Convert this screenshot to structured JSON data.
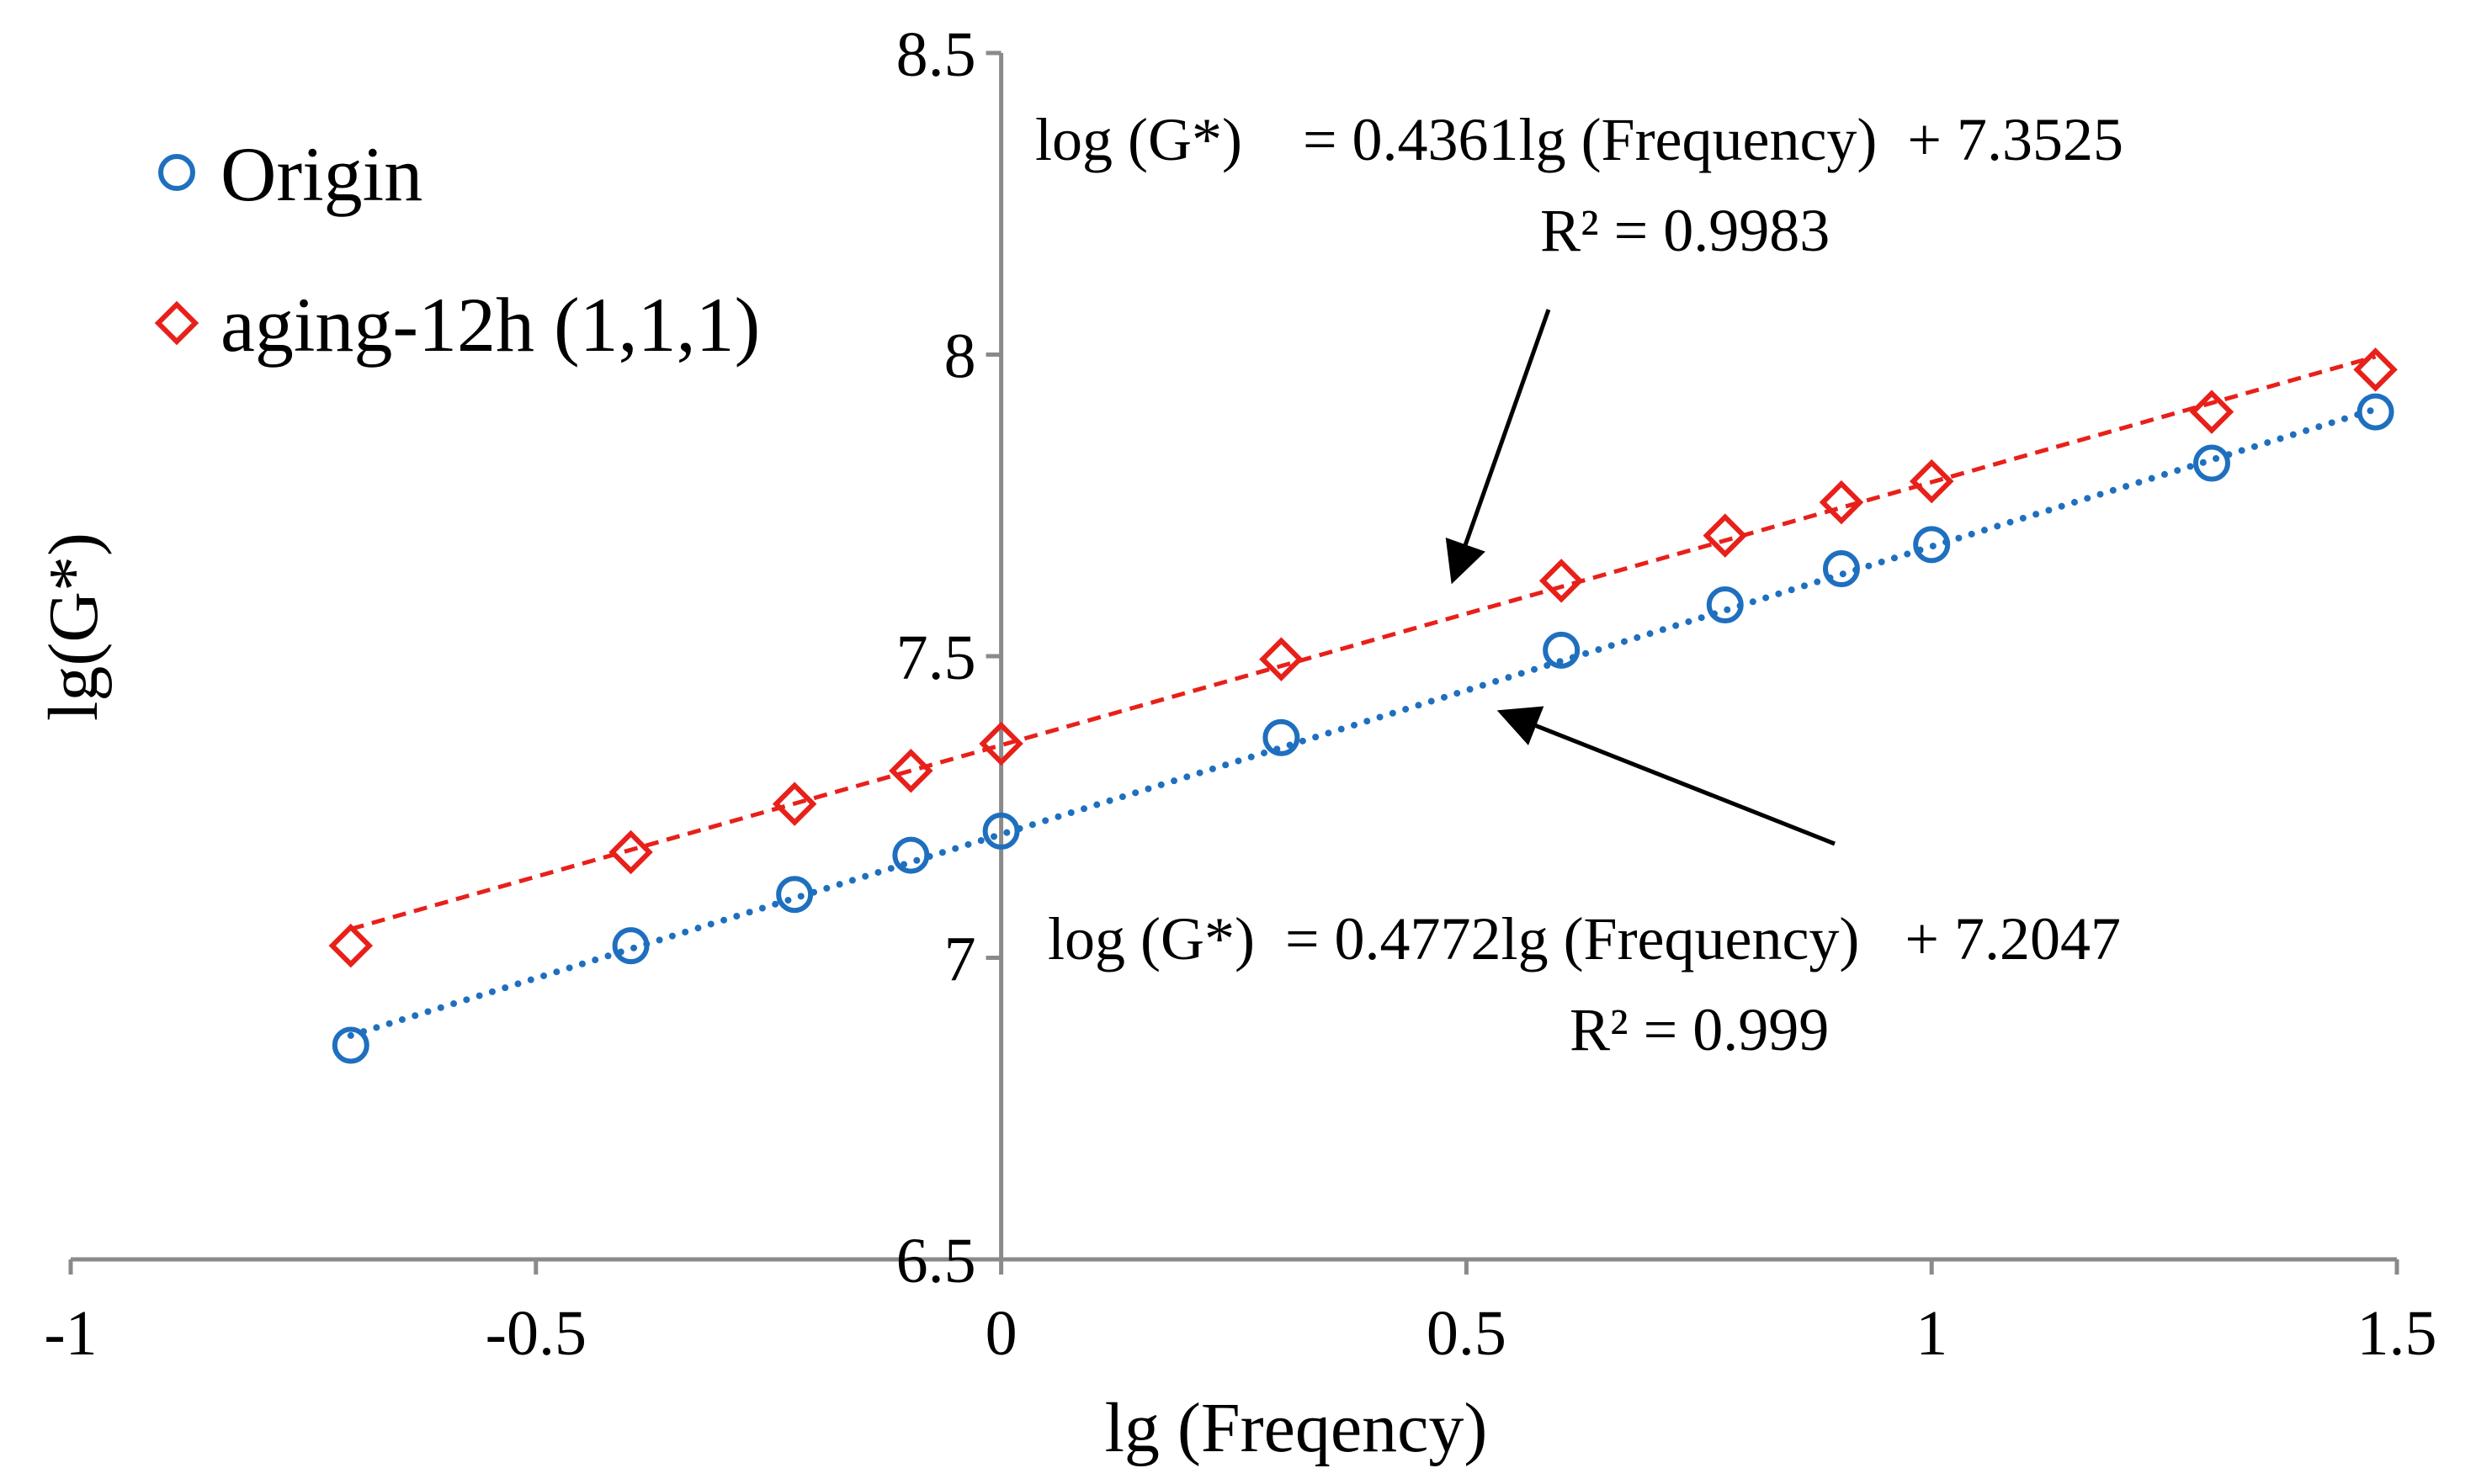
{
  "chart_data": {
    "type": "scatter",
    "xlabel": "lg (Freqency)",
    "ylabel": "lg(G*)",
    "xlim": [
      -1,
      1.5
    ],
    "ylim": [
      6.5,
      8.5
    ],
    "x_ticks": [
      "-1",
      "-0.5",
      "0",
      "0.5",
      "1",
      "1.5"
    ],
    "y_ticks": [
      "6.5",
      "7",
      "7.5",
      "8",
      "8.5"
    ],
    "grid": false,
    "legend_position": "top-left",
    "series": [
      {
        "name": "Origin",
        "marker": "circle",
        "color": "#1f6fbf",
        "trendline": "dotted",
        "x": [
          -0.699,
          -0.398,
          -0.222,
          -0.097,
          0.0,
          0.301,
          0.602,
          0.778,
          0.903,
          1.0,
          1.301,
          1.477
        ],
        "y": [
          6.855,
          7.02,
          7.105,
          7.17,
          7.21,
          7.365,
          7.51,
          7.585,
          7.645,
          7.685,
          7.82,
          7.905
        ],
        "fit": {
          "slope": 0.4772,
          "intercept": 7.2047,
          "equation": "log (G*)  = 0.4772lg (Frequency)   + 7.2047",
          "r2": "R² = 0.999"
        }
      },
      {
        "name": "aging-12h (1,1,1)",
        "marker": "diamond",
        "color": "#e8201a",
        "trendline": "dashed",
        "x": [
          -0.699,
          -0.398,
          -0.222,
          -0.097,
          0.0,
          0.301,
          0.602,
          0.778,
          0.903,
          1.0,
          1.301,
          1.477
        ],
        "y": [
          7.02,
          7.175,
          7.255,
          7.31,
          7.355,
          7.495,
          7.625,
          7.7,
          7.755,
          7.79,
          7.905,
          7.975
        ],
        "fit": {
          "slope": 0.4361,
          "intercept": 7.3525,
          "equation": "log (G*)    = 0.4361lg (Frequency)  + 7.3525",
          "r2": "R² = 0.9983"
        }
      }
    ]
  }
}
